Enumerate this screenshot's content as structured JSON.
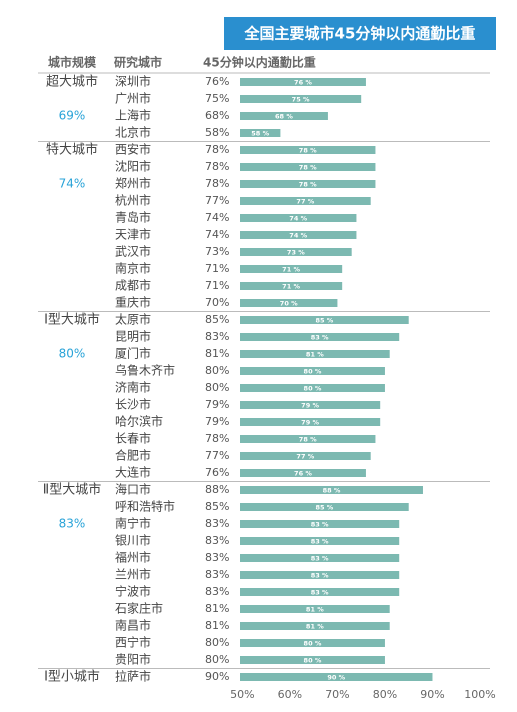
{
  "chart_data": {
    "type": "bar",
    "title": "全国主要城市45分钟以内通勤比重",
    "column_headers": [
      "城市规模",
      "研究城市",
      "45分钟以内通勤比重"
    ],
    "color": "#7cb9b1",
    "xlim": [
      49.5,
      100
    ],
    "xticks": [
      {
        "value": 50,
        "label": "50%"
      },
      {
        "value": 60,
        "label": "60%"
      },
      {
        "value": 70,
        "label": "70%"
      },
      {
        "value": 80,
        "label": "80%"
      },
      {
        "value": 90,
        "label": "90%"
      },
      {
        "value": 100,
        "label": "100%"
      }
    ],
    "groups": [
      {
        "name": "超大城市",
        "average": 69,
        "average_label": "69%",
        "categories": [
          "深圳市",
          "广州市",
          "上海市",
          "北京市"
        ],
        "values": [
          76,
          75,
          68,
          58
        ],
        "value_labels": [
          "76%",
          "75%",
          "68%",
          "58%"
        ],
        "bar_labels": [
          "76 %",
          "75 %",
          "68 %",
          "58 %"
        ]
      },
      {
        "name": "特大城市",
        "average": 74,
        "average_label": "74%",
        "categories": [
          "西安市",
          "沈阳市",
          "郑州市",
          "杭州市",
          "青岛市",
          "天津市",
          "武汉市",
          "南京市",
          "成都市",
          "重庆市"
        ],
        "values": [
          78,
          78,
          78,
          77,
          74,
          74,
          73,
          71,
          71,
          70
        ],
        "value_labels": [
          "78%",
          "78%",
          "78%",
          "77%",
          "74%",
          "74%",
          "73%",
          "71%",
          "71%",
          "70%"
        ],
        "bar_labels": [
          "78 %",
          "78 %",
          "78 %",
          "77 %",
          "74 %",
          "74 %",
          "73 %",
          "71 %",
          "71 %",
          "70 %"
        ]
      },
      {
        "name": "Ⅰ型大城市",
        "average": 80,
        "average_label": "80%",
        "categories": [
          "太原市",
          "昆明市",
          "厦门市",
          "乌鲁木齐市",
          "济南市",
          "长沙市",
          "哈尔滨市",
          "长春市",
          "合肥市",
          "大连市"
        ],
        "values": [
          85,
          83,
          81,
          80,
          80,
          79,
          79,
          78,
          77,
          76
        ],
        "value_labels": [
          "85%",
          "83%",
          "81%",
          "80%",
          "80%",
          "79%",
          "79%",
          "78%",
          "77%",
          "76%"
        ],
        "bar_labels": [
          "85 %",
          "83 %",
          "81 %",
          "80 %",
          "80 %",
          "79 %",
          "79 %",
          "78 %",
          "77 %",
          "76 %"
        ]
      },
      {
        "name": "Ⅱ型大城市",
        "average": 83,
        "average_label": "83%",
        "categories": [
          "海口市",
          "呼和浩特市",
          "南宁市",
          "银川市",
          "福州市",
          "兰州市",
          "宁波市",
          "石家庄市",
          "南昌市",
          "西宁市",
          "贵阳市"
        ],
        "values": [
          88,
          85,
          83,
          83,
          83,
          83,
          83,
          81,
          81,
          80,
          80
        ],
        "value_labels": [
          "88%",
          "85%",
          "83%",
          "83%",
          "83%",
          "83%",
          "83%",
          "81%",
          "81%",
          "80%",
          "80%"
        ],
        "bar_labels": [
          "88 %",
          "85 %",
          "83 %",
          "83 %",
          "83 %",
          "83 %",
          "83 %",
          "81 %",
          "81 %",
          "80 %",
          "80 %"
        ]
      },
      {
        "name": "Ⅰ型小城市",
        "categories": [
          "拉萨市"
        ],
        "values": [
          90
        ],
        "value_labels": [
          "90%"
        ],
        "bar_labels": [
          "90 %"
        ]
      }
    ]
  }
}
